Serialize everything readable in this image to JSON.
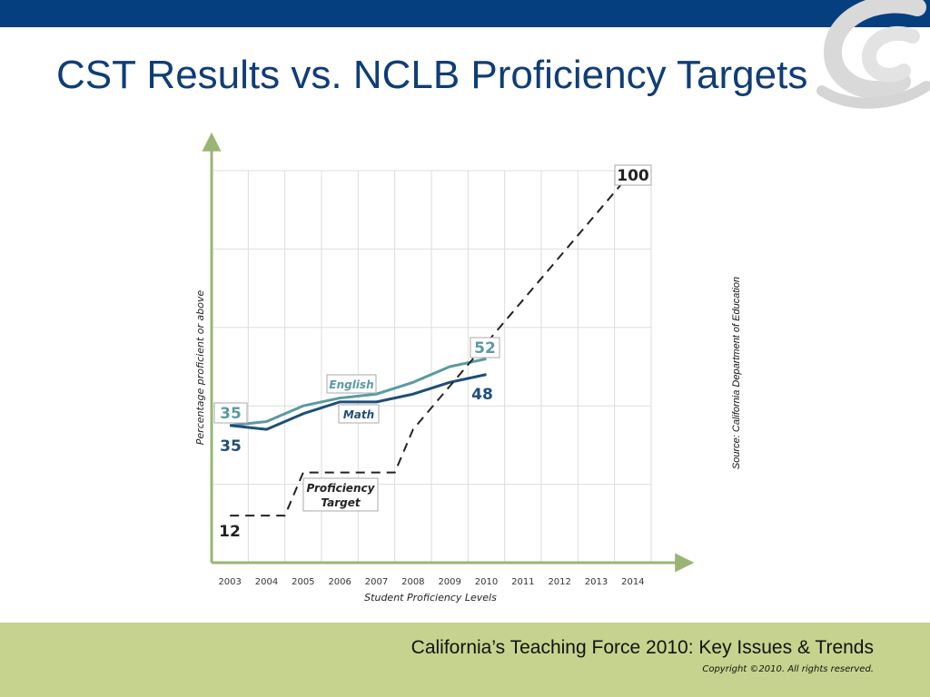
{
  "slide": {
    "title": "CST Results vs. NCLB Proficiency Targets",
    "footer_title": "California’s Teaching Force 2010: Key Issues & Trends",
    "copyright": "Copyright ©2010. All rights reserved.",
    "source": "Source: California Department of Education"
  },
  "colors": {
    "top_bar": "#063f7f",
    "title": "#0f3d78",
    "footer": "#c6d38e",
    "english": "#5b9aa0",
    "math": "#1f4e79",
    "target": "#222222",
    "axis": "#9ab573"
  },
  "chart_data": {
    "type": "line",
    "xlabel": "Student Proficiency Levels",
    "ylabel": "Percentage proficient or above",
    "x": [
      "2003",
      "2004",
      "2005",
      "2006",
      "2007",
      "2008",
      "2009",
      "2010",
      "2011",
      "2012",
      "2013",
      "2014"
    ],
    "ylim": [
      0,
      100
    ],
    "grid": true,
    "series": [
      {
        "name": "English",
        "color": "#5b9aa0",
        "values": [
          35,
          36,
          40,
          42,
          43,
          46,
          50,
          52,
          null,
          null,
          null,
          null
        ]
      },
      {
        "name": "Math",
        "color": "#1f4e79",
        "values": [
          35,
          34,
          38,
          41,
          41,
          43,
          46,
          48,
          null,
          null,
          null,
          null
        ]
      },
      {
        "name": "Proficiency Target",
        "label_lines": [
          "Proficiency",
          "Target"
        ],
        "color": "#222222",
        "dashed": true,
        "values": [
          12,
          12,
          23,
          23,
          23,
          34,
          45,
          56,
          67,
          78,
          89,
          100
        ]
      }
    ],
    "annotations": {
      "english_start": "35",
      "english_end": "52",
      "math_start": "35",
      "math_end": "48",
      "target_start": "12",
      "target_end": "100"
    }
  }
}
